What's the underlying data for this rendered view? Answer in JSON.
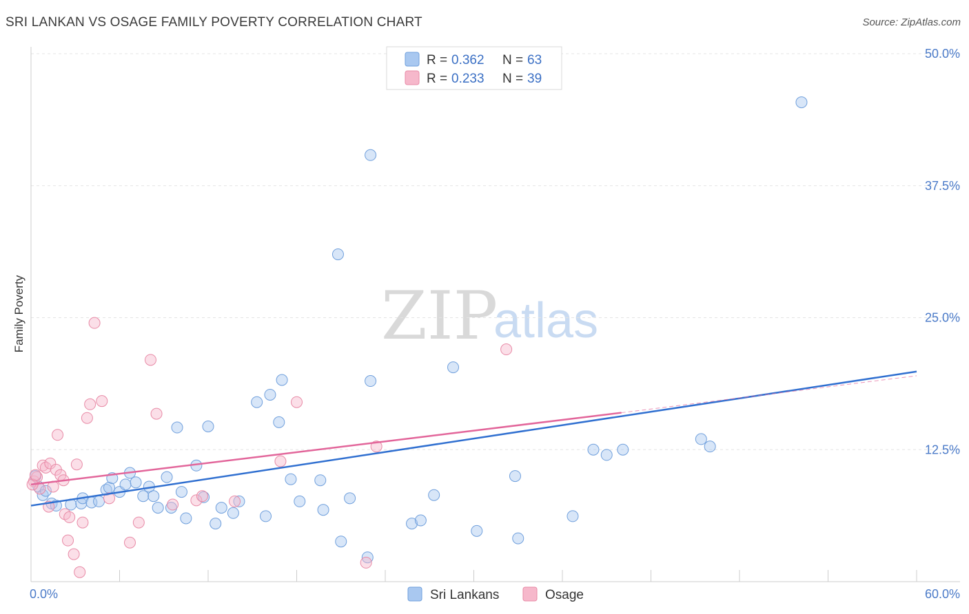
{
  "header": {
    "title": "SRI LANKAN VS OSAGE FAMILY POVERTY CORRELATION CHART",
    "source": "Source: ZipAtlas.com"
  },
  "watermark": {
    "zip": "ZIP",
    "atlas": "atlas"
  },
  "legend": {
    "rows": [
      {
        "r_label": "R = ",
        "r_value": "0.362",
        "n_label": "N = ",
        "n_value": "63",
        "color": "#a9c8f0"
      },
      {
        "r_label": "R = ",
        "r_value": "0.233",
        "n_label": "N = ",
        "n_value": "39",
        "color": "#f6b8cb"
      }
    ]
  },
  "bottom_legend": [
    {
      "label": "Sri Lankans",
      "color": "#a9c8f0"
    },
    {
      "label": "Osage",
      "color": "#f6b8cb"
    }
  ],
  "chart_data": {
    "type": "scatter",
    "title": "SRI LANKAN VS OSAGE FAMILY POVERTY CORRELATION CHART",
    "xlabel": "",
    "ylabel": "Family Poverty",
    "xlim": [
      0,
      60
    ],
    "ylim": [
      0,
      50
    ],
    "x_tick_labels": [
      "0.0%",
      "60.0%"
    ],
    "y_ticks": [
      12.5,
      25.0,
      37.5,
      50.0
    ],
    "y_tick_labels": [
      "12.5%",
      "25.0%",
      "37.5%",
      "50.0%"
    ],
    "grid": true,
    "legend_position": "top-center",
    "series": [
      {
        "name": "Sri Lankans",
        "color": "#a9c8f0",
        "stroke": "#6f9fdc",
        "trend": {
          "x": [
            0,
            60
          ],
          "y": [
            7.2,
            19.9
          ],
          "color": "#2f6fd0",
          "dashed_extension": false
        },
        "points": [
          [
            0.3,
            10.0
          ],
          [
            0.5,
            9.0
          ],
          [
            0.8,
            8.2
          ],
          [
            1.0,
            8.6
          ],
          [
            1.4,
            7.4
          ],
          [
            1.7,
            7.2
          ],
          [
            2.7,
            7.3
          ],
          [
            3.4,
            7.4
          ],
          [
            3.5,
            7.9
          ],
          [
            4.1,
            7.5
          ],
          [
            4.6,
            7.6
          ],
          [
            5.1,
            8.7
          ],
          [
            5.3,
            8.9
          ],
          [
            5.5,
            9.8
          ],
          [
            6.0,
            8.5
          ],
          [
            6.4,
            9.2
          ],
          [
            6.7,
            10.3
          ],
          [
            7.1,
            9.4
          ],
          [
            7.6,
            8.1
          ],
          [
            8.0,
            9.0
          ],
          [
            8.3,
            8.1
          ],
          [
            8.6,
            7.0
          ],
          [
            9.2,
            9.9
          ],
          [
            9.5,
            7.0
          ],
          [
            9.9,
            14.6
          ],
          [
            10.2,
            8.5
          ],
          [
            10.5,
            6.0
          ],
          [
            11.2,
            11.0
          ],
          [
            11.7,
            8.0
          ],
          [
            12.0,
            14.7
          ],
          [
            12.5,
            5.5
          ],
          [
            12.9,
            7.0
          ],
          [
            13.7,
            6.5
          ],
          [
            14.1,
            7.6
          ],
          [
            15.3,
            17.0
          ],
          [
            15.9,
            6.2
          ],
          [
            16.2,
            17.7
          ],
          [
            16.8,
            15.1
          ],
          [
            17.0,
            19.1
          ],
          [
            17.6,
            9.7
          ],
          [
            18.2,
            7.6
          ],
          [
            19.6,
            9.6
          ],
          [
            19.8,
            6.8
          ],
          [
            20.8,
            31.0
          ],
          [
            21.0,
            3.8
          ],
          [
            21.6,
            7.9
          ],
          [
            22.8,
            2.3
          ],
          [
            23.0,
            40.4
          ],
          [
            23.0,
            19.0
          ],
          [
            25.8,
            5.5
          ],
          [
            26.4,
            5.8
          ],
          [
            27.3,
            8.2
          ],
          [
            28.6,
            20.3
          ],
          [
            30.2,
            4.8
          ],
          [
            32.8,
            10.0
          ],
          [
            33.0,
            4.1
          ],
          [
            36.7,
            6.2
          ],
          [
            38.1,
            12.5
          ],
          [
            39.0,
            12.0
          ],
          [
            40.1,
            12.5
          ],
          [
            45.4,
            13.5
          ],
          [
            46.0,
            12.8
          ],
          [
            52.2,
            45.4
          ]
        ]
      },
      {
        "name": "Osage",
        "color": "#f6b8cb",
        "stroke": "#e88aa6",
        "trend": {
          "x": [
            0,
            40
          ],
          "y": [
            9.2,
            16.0
          ],
          "color": "#e2659a",
          "dashed_extension": true,
          "extension_to": [
            60,
            19.5
          ]
        },
        "points": [
          [
            0.2,
            9.5
          ],
          [
            0.4,
            9.9
          ],
          [
            0.6,
            8.8
          ],
          [
            0.8,
            11.0
          ],
          [
            1.0,
            10.8
          ],
          [
            1.2,
            7.1
          ],
          [
            1.3,
            11.2
          ],
          [
            1.5,
            9.0
          ],
          [
            1.7,
            10.6
          ],
          [
            1.8,
            13.9
          ],
          [
            2.0,
            10.1
          ],
          [
            2.2,
            9.6
          ],
          [
            2.3,
            6.4
          ],
          [
            2.5,
            3.9
          ],
          [
            2.6,
            6.1
          ],
          [
            2.9,
            2.6
          ],
          [
            3.1,
            11.1
          ],
          [
            3.3,
            0.9
          ],
          [
            3.5,
            5.6
          ],
          [
            3.8,
            15.5
          ],
          [
            4.0,
            16.8
          ],
          [
            4.3,
            24.5
          ],
          [
            4.8,
            17.1
          ],
          [
            5.3,
            7.9
          ],
          [
            6.7,
            3.7
          ],
          [
            7.3,
            5.6
          ],
          [
            8.1,
            21.0
          ],
          [
            8.5,
            15.9
          ],
          [
            9.6,
            7.3
          ],
          [
            11.2,
            7.7
          ],
          [
            11.6,
            8.1
          ],
          [
            13.8,
            7.6
          ],
          [
            16.9,
            11.4
          ],
          [
            18.0,
            17.0
          ],
          [
            22.7,
            1.8
          ],
          [
            23.4,
            12.8
          ],
          [
            32.2,
            22.0
          ],
          [
            0.1,
            9.2
          ],
          [
            0.3,
            10.1
          ]
        ]
      }
    ]
  }
}
